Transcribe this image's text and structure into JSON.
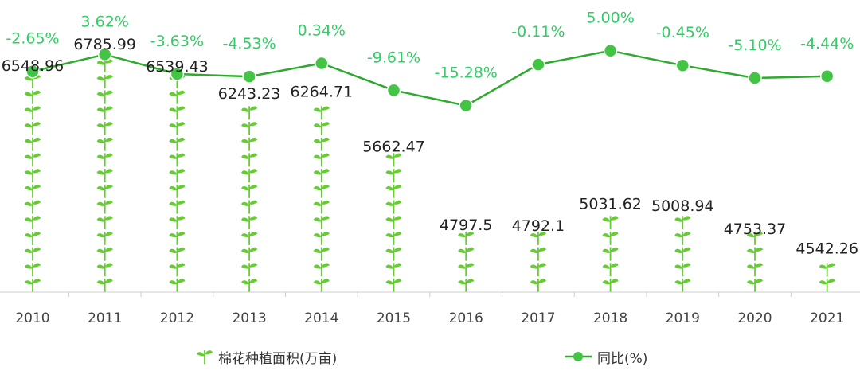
{
  "chart_data": {
    "type": "bar+line",
    "categories": [
      "2010",
      "2011",
      "2012",
      "2013",
      "2014",
      "2015",
      "2016",
      "2017",
      "2018",
      "2019",
      "2020",
      "2021"
    ],
    "series": [
      {
        "name": "棉花种植面积(万亩)",
        "kind": "pictorial-bar",
        "values": [
          6548.96,
          6785.99,
          6539.43,
          6243.23,
          6264.71,
          5662.47,
          4797.5,
          4792.1,
          5031.62,
          5008.94,
          4753.37,
          4542.26
        ],
        "labels": [
          "6548.96",
          "6785.99",
          "6539.43",
          "6243.23",
          "6264.71",
          "5662.47",
          "4797.5",
          "4792.1",
          "5031.62",
          "5008.94",
          "4753.37",
          "4542.26"
        ]
      },
      {
        "name": "同比(%)",
        "kind": "line",
        "values": [
          -2.65,
          3.62,
          -3.63,
          -4.53,
          0.34,
          -9.61,
          -15.28,
          -0.11,
          5.0,
          -0.45,
          -5.1,
          -4.44
        ],
        "labels": [
          "-2.65%",
          "3.62%",
          "-3.63%",
          "-4.53%",
          "0.34%",
          "-9.61%",
          "-15.28%",
          "-0.11%",
          "5.00%",
          "-0.45%",
          "-5.10%",
          "-4.44%"
        ]
      }
    ],
    "colors": {
      "line": "#2eaa2e",
      "marker": "#44c444",
      "pct_label": "#33cc66",
      "plant": "#66cc33",
      "value_label": "#222222",
      "axis": "#cccccc",
      "tick_label": "#444444"
    },
    "grid": false,
    "legend_position": "bottom"
  }
}
